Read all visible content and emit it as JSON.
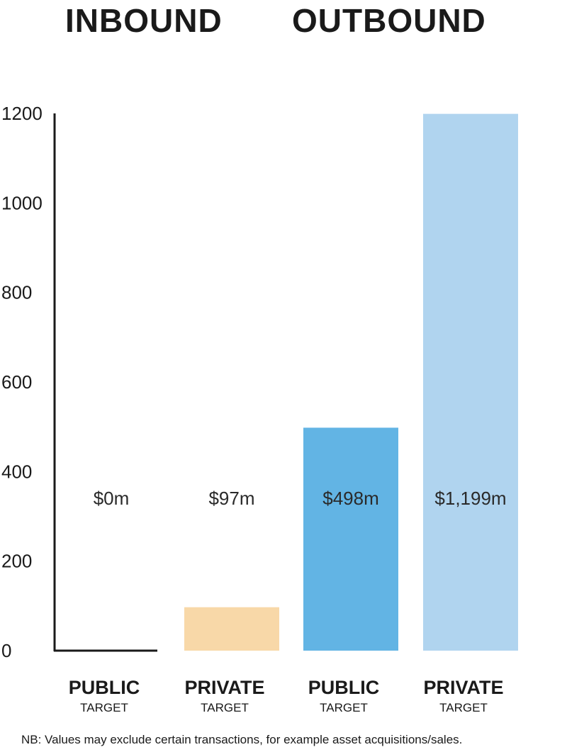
{
  "chart_data": {
    "type": "bar",
    "group_labels": [
      "INBOUND",
      "OUTBOUND"
    ],
    "categories": [
      {
        "main": "PUBLIC",
        "sub": "TARGET",
        "group": "INBOUND"
      },
      {
        "main": "PRIVATE",
        "sub": "TARGET",
        "group": "INBOUND"
      },
      {
        "main": "PUBLIC",
        "sub": "TARGET",
        "group": "OUTBOUND"
      },
      {
        "main": "PRIVATE",
        "sub": "TARGET",
        "group": "OUTBOUND"
      }
    ],
    "values": [
      0,
      97,
      498,
      1199
    ],
    "value_labels": [
      "$0m",
      "$97m",
      "$498m",
      "$1,199m"
    ],
    "colors": [
      "#f8d8a8",
      "#f8d8a8",
      "#62b4e4",
      "#b0d4ef"
    ],
    "ylim": [
      0,
      1200
    ],
    "yticks": [
      0,
      200,
      400,
      600,
      800,
      1000,
      1200
    ],
    "grid": false,
    "footnote": "NB: Values may exclude certain transactions, for example asset acquisitions/sales."
  }
}
